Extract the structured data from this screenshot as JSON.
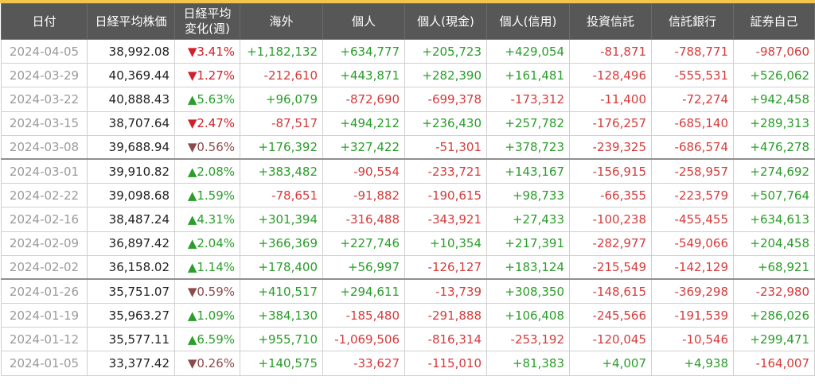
{
  "table": {
    "headers": [
      {
        "line1": "日付",
        "line2": ""
      },
      {
        "line1": "日経平均株価",
        "line2": ""
      },
      {
        "line1": "日経平均",
        "line2": "変化(週)"
      },
      {
        "line1": "海外",
        "line2": ""
      },
      {
        "line1": "個人",
        "line2": ""
      },
      {
        "line1": "個人(現金)",
        "line2": ""
      },
      {
        "line1": "個人(信用)",
        "line2": ""
      },
      {
        "line1": "投資信託",
        "line2": ""
      },
      {
        "line1": "信託銀行",
        "line2": ""
      },
      {
        "line1": "証券自己",
        "line2": ""
      }
    ],
    "rows": [
      {
        "date": "2024-04-05",
        "index": "38,992.08",
        "change": "▼3.41%",
        "cells": [
          "+1,182,132",
          "+634,777",
          "+205,723",
          "+429,054",
          "-81,871",
          "-788,771",
          "-987,060"
        ]
      },
      {
        "date": "2024-03-29",
        "index": "40,369.44",
        "change": "▼1.27%",
        "cells": [
          "-212,610",
          "+443,871",
          "+282,390",
          "+161,481",
          "-128,496",
          "-555,531",
          "+526,062"
        ]
      },
      {
        "date": "2024-03-22",
        "index": "40,888.43",
        "change": "▲5.63%",
        "cells": [
          "+96,079",
          "-872,690",
          "-699,378",
          "-173,312",
          "-11,400",
          "-72,274",
          "+942,458"
        ]
      },
      {
        "date": "2024-03-15",
        "index": "38,707.64",
        "change": "▼2.47%",
        "cells": [
          "-87,517",
          "+494,212",
          "+236,430",
          "+257,782",
          "-176,257",
          "-685,140",
          "+289,313"
        ]
      },
      {
        "date": "2024-03-08",
        "index": "39,688.94",
        "change": "▼0.56%",
        "cells": [
          "+176,392",
          "+327,422",
          "-51,301",
          "+378,723",
          "-239,325",
          "-686,574",
          "+476,278"
        ]
      },
      {
        "date": "2024-03-01",
        "index": "39,910.82",
        "change": "▲2.08%",
        "cells": [
          "+383,482",
          "-90,554",
          "-233,721",
          "+143,167",
          "-156,915",
          "-258,957",
          "+274,692"
        ]
      },
      {
        "date": "2024-02-22",
        "index": "39,098.68",
        "change": "▲1.59%",
        "cells": [
          "-78,651",
          "-91,882",
          "-190,615",
          "+98,733",
          "-66,355",
          "-223,579",
          "+507,764"
        ]
      },
      {
        "date": "2024-02-16",
        "index": "38,487.24",
        "change": "▲4.31%",
        "cells": [
          "+301,394",
          "-316,488",
          "-343,921",
          "+27,433",
          "-100,238",
          "-455,455",
          "+634,613"
        ]
      },
      {
        "date": "2024-02-09",
        "index": "36,897.42",
        "change": "▲2.04%",
        "cells": [
          "+366,369",
          "+227,746",
          "+10,354",
          "+217,391",
          "-282,977",
          "-549,066",
          "+204,458"
        ]
      },
      {
        "date": "2024-02-02",
        "index": "36,158.02",
        "change": "▲1.14%",
        "cells": [
          "+178,400",
          "+56,997",
          "-126,127",
          "+183,124",
          "-215,549",
          "-142,129",
          "+68,921"
        ]
      },
      {
        "date": "2024-01-26",
        "index": "35,751.07",
        "change": "▼0.59%",
        "cells": [
          "+410,517",
          "+294,611",
          "-13,739",
          "+308,350",
          "-148,615",
          "-369,298",
          "-232,980"
        ]
      },
      {
        "date": "2024-01-19",
        "index": "35,963.27",
        "change": "▲1.09%",
        "cells": [
          "+384,130",
          "-185,480",
          "-291,888",
          "+106,408",
          "-245,566",
          "-191,539",
          "+286,026"
        ]
      },
      {
        "date": "2024-01-12",
        "index": "35,577.11",
        "change": "▲6.59%",
        "cells": [
          "+955,710",
          "-1,069,506",
          "-816,314",
          "-253,192",
          "-120,045",
          "-10,546",
          "+299,471"
        ]
      },
      {
        "date": "2024-01-05",
        "index": "33,377.42",
        "change": "▼0.26%",
        "cells": [
          "+140,575",
          "-33,627",
          "-115,010",
          "+81,383",
          "+4,007",
          "+4,938",
          "-164,007"
        ]
      }
    ],
    "separator_before_rows": [
      5,
      10
    ]
  },
  "colors": {
    "header_bg": "#575757",
    "header_text": "#ffffff",
    "positive": "#2a9d2a",
    "negative": "#d53b3b",
    "date_text": "#9a9a9a",
    "top_accent": "#f2c64a"
  }
}
